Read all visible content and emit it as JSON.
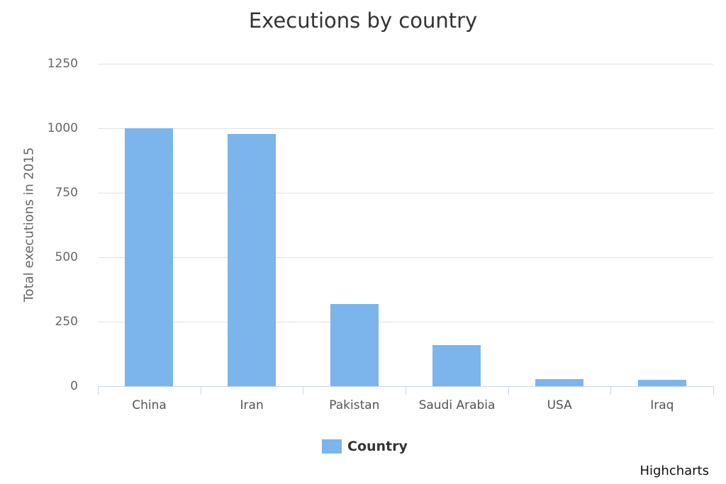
{
  "chart_data": {
    "type": "bar",
    "title": "Executions by country",
    "xlabel": "",
    "ylabel": "Total executions in 2015",
    "categories": [
      "China",
      "Iran",
      "Pakistan",
      "Saudi Arabia",
      "USA",
      "Iraq"
    ],
    "series": [
      {
        "name": "Country",
        "color": "#7cb5ec",
        "values": [
          1000,
          977,
          320,
          158,
          28,
          26
        ]
      }
    ],
    "ylim": [
      0,
      1250
    ],
    "yticks": [
      0,
      250,
      500,
      750,
      1000,
      1250
    ],
    "grid": true,
    "legend_position": "bottom-center"
  },
  "title": "Executions by country",
  "yaxis": {
    "label": "Total executions in 2015",
    "ticks": [
      "1250",
      "1000",
      "750",
      "500",
      "250",
      "0"
    ]
  },
  "xaxis": {
    "labels": [
      "China",
      "Iran",
      "Pakistan",
      "Saudi Arabia",
      "USA",
      "Iraq"
    ]
  },
  "legend": {
    "label": "Country"
  },
  "credits": "Highcharts"
}
